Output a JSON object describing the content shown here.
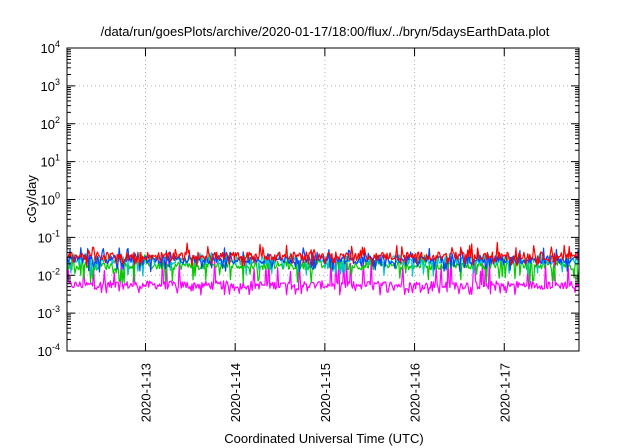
{
  "chart_data": {
    "type": "line",
    "title": "/data/run/goesPlots/archive/2020-01-17/18:00/flux/../bryn/5daysEarthData.plot",
    "xlabel": "Coordinated Universal Time (UTC)",
    "ylabel": "cGy/day",
    "y_scale": "log",
    "ylim": [
      0.0001,
      10000
    ],
    "xlim": [
      "2020-01-12 03:00",
      "2020-01-17 20:00"
    ],
    "y_ticks": [
      {
        "value": 0.0001,
        "base": "10",
        "exp": "-4"
      },
      {
        "value": 0.001,
        "base": "10",
        "exp": "-3"
      },
      {
        "value": 0.01,
        "base": "10",
        "exp": "-2"
      },
      {
        "value": 0.1,
        "base": "10",
        "exp": "-1"
      },
      {
        "value": 1,
        "base": "10",
        "exp": "0"
      },
      {
        "value": 10,
        "base": "10",
        "exp": "1"
      },
      {
        "value": 100,
        "base": "10",
        "exp": "2"
      },
      {
        "value": 1000,
        "base": "10",
        "exp": "3"
      },
      {
        "value": 10000,
        "base": "10",
        "exp": "4"
      }
    ],
    "x_ticks": [
      {
        "value": "2020-01-13 00:00",
        "label": "2020-1-13"
      },
      {
        "value": "2020-01-14 00:00",
        "label": "2020-1-14"
      },
      {
        "value": "2020-01-15 00:00",
        "label": "2020-1-15"
      },
      {
        "value": "2020-01-16 00:00",
        "label": "2020-1-16"
      },
      {
        "value": "2020-01-17 00:00",
        "label": "2020-1-17"
      }
    ],
    "grid": true,
    "series": [
      {
        "color": "#ff0000",
        "typical": 0.032,
        "min": 0.018,
        "max": 0.075
      },
      {
        "color": "#00c8c8",
        "typical": 0.024,
        "min": 0.009,
        "max": 0.04
      },
      {
        "color": "#00cc00",
        "typical": 0.018,
        "min": 0.006,
        "max": 0.035
      },
      {
        "color": "#0044ff",
        "typical": 0.026,
        "min": 0.012,
        "max": 0.055
      },
      {
        "color": "#ff00ff",
        "typical": 0.0055,
        "min": 0.003,
        "max": 0.03
      }
    ]
  }
}
